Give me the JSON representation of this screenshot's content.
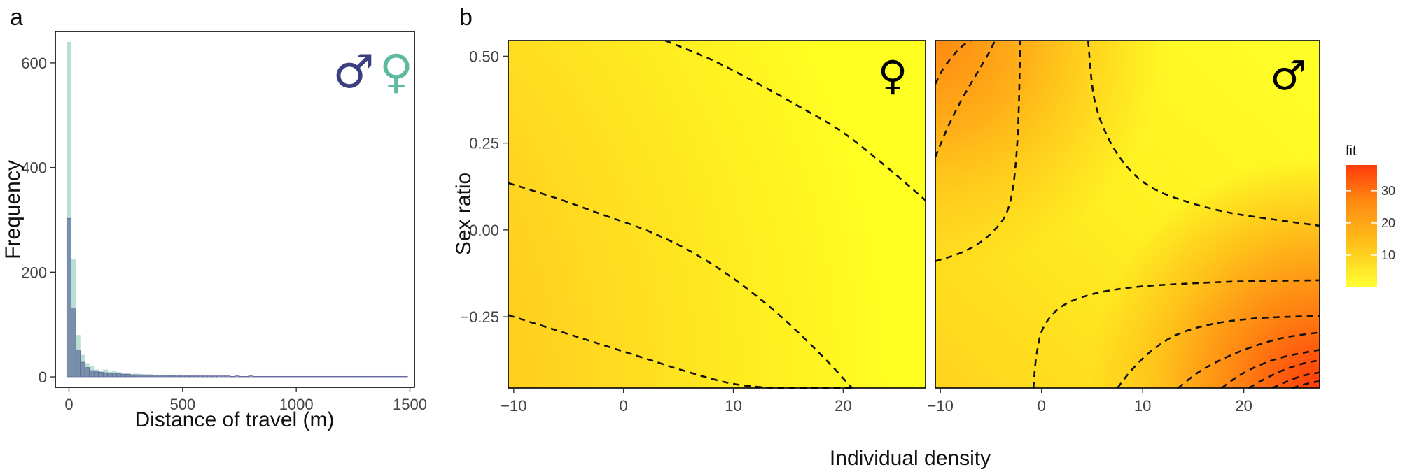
{
  "panel_labels": {
    "a": "a",
    "b": "b"
  },
  "chart_data": [
    {
      "type": "bar",
      "subtype": "overlaid-histogram",
      "panel": "a",
      "title": "",
      "xlabel": "Distance of travel (m)",
      "ylabel": "Frequency",
      "xlim": [
        -60,
        1520
      ],
      "ylim": [
        -20,
        660
      ],
      "xticks": [
        0,
        500,
        1000,
        1500
      ],
      "yticks": [
        0,
        200,
        400,
        600
      ],
      "bin_width": 20,
      "legend_symbols": [
        "♂",
        "♀"
      ],
      "series": [
        {
          "name": "♂",
          "color": "#3b3f7f",
          "bin_starts": [
            -10,
            10,
            30,
            50,
            70,
            90,
            110,
            130,
            150,
            170,
            190,
            210,
            230,
            250,
            270,
            290,
            310,
            330,
            350,
            370,
            390,
            410,
            430,
            450,
            470,
            490,
            510,
            530,
            550,
            570,
            590,
            610,
            630,
            650,
            670,
            690,
            710,
            730,
            750,
            770,
            790,
            810,
            830,
            850,
            870,
            890,
            910,
            930,
            950,
            970,
            990,
            1010,
            1030,
            1050,
            1070,
            1090,
            1110,
            1130,
            1150,
            1170,
            1190,
            1210,
            1230,
            1250,
            1270,
            1290,
            1310,
            1330,
            1350,
            1370,
            1390,
            1410,
            1430,
            1450,
            1470
          ],
          "values": [
            303,
            130,
            50,
            28,
            18,
            12,
            10,
            9,
            8,
            7,
            6,
            6,
            5,
            5,
            4,
            4,
            4,
            3,
            4,
            3,
            3,
            3,
            2,
            3,
            2,
            3,
            2,
            2,
            2,
            2,
            2,
            2,
            2,
            2,
            2,
            2,
            1,
            2,
            1,
            1,
            2,
            1,
            1,
            1,
            1,
            1,
            1,
            1,
            1,
            1,
            1,
            1,
            1,
            1,
            1,
            1,
            1,
            1,
            1,
            1,
            1,
            1,
            1,
            1,
            1,
            1,
            1,
            1,
            1,
            1,
            1,
            1,
            1,
            1,
            1
          ]
        },
        {
          "name": "♀",
          "color": "#5fb8a0",
          "bin_starts": [
            -10,
            10,
            30,
            50,
            70,
            90,
            110,
            130,
            150,
            170,
            190,
            210,
            230,
            250,
            270,
            290,
            310,
            330,
            350,
            370,
            390,
            410,
            430,
            450,
            470,
            490,
            510,
            530,
            550,
            570,
            590,
            610,
            630
          ],
          "values": [
            640,
            225,
            80,
            42,
            26,
            20,
            14,
            12,
            14,
            10,
            12,
            9,
            8,
            7,
            6,
            6,
            5,
            5,
            4,
            4,
            4,
            3,
            3,
            3,
            2,
            2,
            2,
            2,
            1,
            1,
            1,
            1,
            1
          ]
        }
      ]
    },
    {
      "type": "heatmap",
      "subtype": "contour-surface",
      "panel": "b",
      "title": "",
      "xlabel": "Individual density",
      "ylabel": "Sex ratio",
      "xlim": [
        -10.5,
        27.5
      ],
      "ylim": [
        -0.455,
        0.545
      ],
      "xticks": [
        -10,
        0,
        10,
        20
      ],
      "yticks": [
        0.5,
        0.25,
        0.0,
        -0.25
      ],
      "ytick_labels": [
        "0.50",
        "0.25",
        "0.00",
        "−0.25"
      ],
      "xtick_labels": [
        "−10",
        "0",
        "10",
        "20"
      ],
      "colorbar": {
        "title": "fit",
        "ticks": [
          10,
          20,
          30
        ],
        "range": [
          0,
          38
        ],
        "colors": [
          "#ffff33",
          "#ffc21a",
          "#ff8a12",
          "#ff3a0a"
        ]
      },
      "facets": [
        {
          "symbol": "♀",
          "contour_lines": [
            {
              "x": [
                -10.5,
                -6,
                -2,
                2,
                6,
                10,
                14,
                18,
                21
              ],
              "y": [
                -0.245,
                -0.29,
                -0.33,
                -0.37,
                -0.41,
                -0.443,
                -0.455,
                -0.455,
                -0.455
              ]
            },
            {
              "x": [
                -10.5,
                -6,
                -2,
                2,
                6,
                10,
                14,
                18,
                20.8
              ],
              "y": [
                0.135,
                0.09,
                0.045,
                0.0,
                -0.06,
                -0.14,
                -0.24,
                -0.36,
                -0.455
              ]
            },
            {
              "x": [
                3.8,
                8,
                12,
                16,
                20,
                24,
                27.5
              ],
              "y": [
                0.545,
                0.49,
                0.425,
                0.355,
                0.28,
                0.18,
                0.085
              ]
            }
          ]
        },
        {
          "symbol": "♂",
          "contour_lines": [
            {
              "x": [
                -10.5,
                -9.8,
                -8.8,
                -7.8,
                -7.0
              ],
              "y": [
                0.42,
                0.46,
                0.5,
                0.53,
                0.545
              ]
            },
            {
              "x": [
                -10.5,
                -9.2,
                -7.8,
                -6.4,
                -5.2,
                -4.6
              ],
              "y": [
                0.21,
                0.3,
                0.38,
                0.45,
                0.51,
                0.545
              ]
            },
            {
              "x": [
                -10.5,
                -7.5,
                -5,
                -3.2,
                -2.4,
                -2.1
              ],
              "y": [
                -0.09,
                -0.06,
                -0.01,
                0.07,
                0.25,
                0.545
              ]
            },
            {
              "x": [
                4.6,
                5.2,
                6.5,
                8.5,
                11,
                14.5,
                18.5,
                23,
                27.5
              ],
              "y": [
                0.545,
                0.38,
                0.27,
                0.18,
                0.12,
                0.08,
                0.05,
                0.03,
                0.012
              ]
            },
            {
              "x": [
                -0.8,
                -0.5,
                0.2,
                2,
                5,
                9,
                14,
                20,
                27.5
              ],
              "y": [
                -0.455,
                -0.36,
                -0.28,
                -0.22,
                -0.185,
                -0.165,
                -0.155,
                -0.148,
                -0.145
              ]
            },
            {
              "x": [
                7.5,
                9,
                11,
                13.5,
                17,
                21,
                24.5,
                27.5
              ],
              "y": [
                -0.455,
                -0.4,
                -0.345,
                -0.3,
                -0.27,
                -0.255,
                -0.25,
                -0.248
              ]
            },
            {
              "x": [
                13.5,
                15.5,
                18,
                21,
                24,
                27.5
              ],
              "y": [
                -0.455,
                -0.41,
                -0.37,
                -0.335,
                -0.31,
                -0.295
              ]
            },
            {
              "x": [
                17.8,
                19.5,
                21.5,
                24,
                27.5
              ],
              "y": [
                -0.455,
                -0.42,
                -0.39,
                -0.365,
                -0.345
              ]
            },
            {
              "x": [
                20.5,
                22,
                23.8,
                25.8,
                27.5
              ],
              "y": [
                -0.455,
                -0.43,
                -0.405,
                -0.385,
                -0.375
              ]
            },
            {
              "x": [
                22.8,
                24.2,
                25.8,
                27.5
              ],
              "y": [
                -0.455,
                -0.437,
                -0.42,
                -0.41
              ]
            },
            {
              "x": [
                24.8,
                26.2,
                27.5
              ],
              "y": [
                -0.455,
                -0.443,
                -0.435
              ]
            }
          ]
        }
      ]
    }
  ]
}
